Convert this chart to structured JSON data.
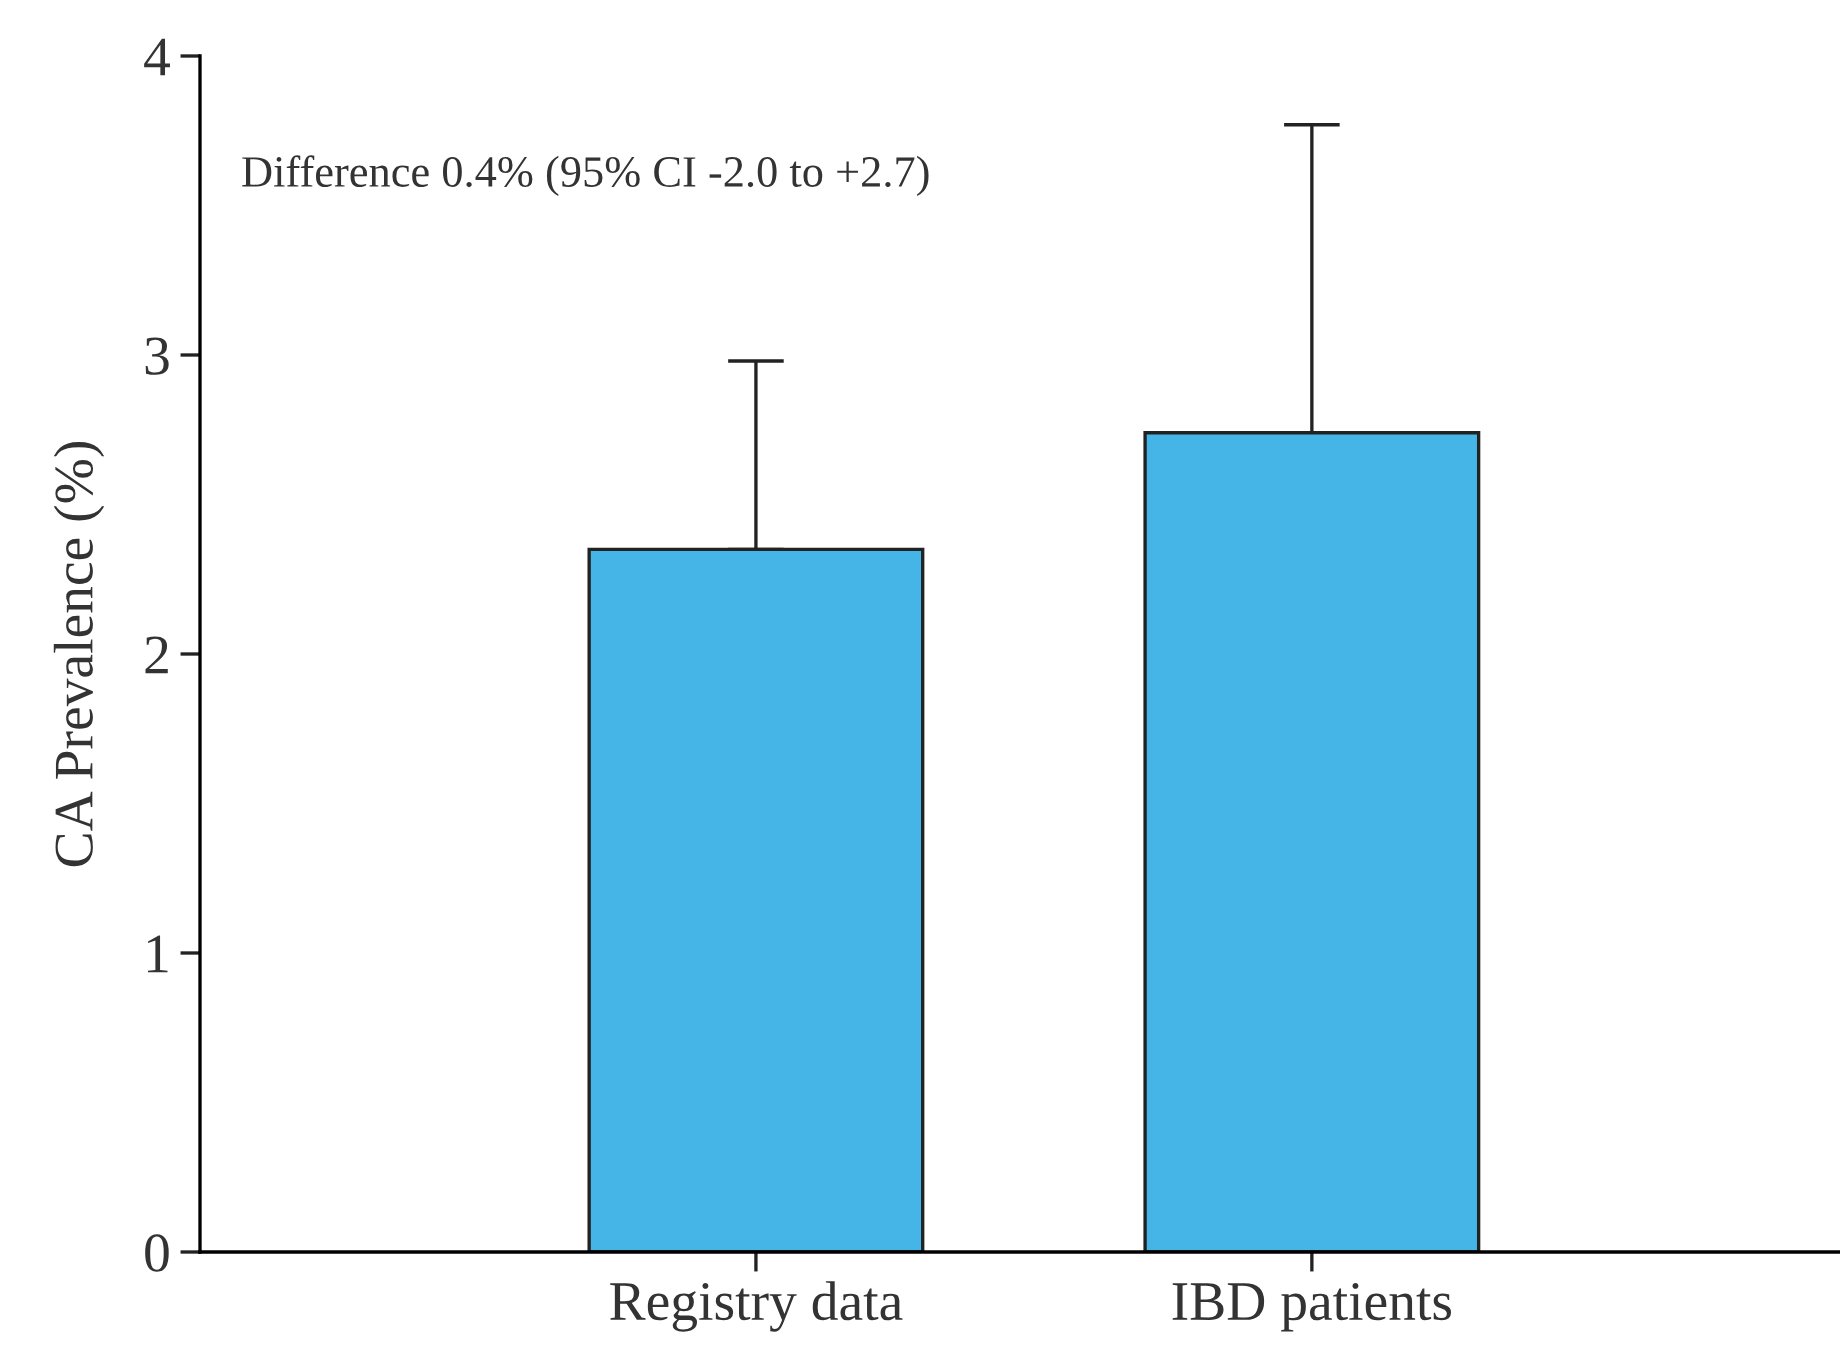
{
  "chart_data": {
    "type": "bar",
    "ylabel": "CA Prevalence (%)",
    "categories": [
      "Registry data",
      "IBD patients"
    ],
    "values": [
      2.35,
      2.74
    ],
    "errors": [
      [
        2.35,
        2.98
      ],
      [
        2.74,
        3.77
      ]
    ],
    "color": "#45b5e8",
    "ylim": [
      0,
      4
    ],
    "yticks": [
      0,
      1,
      2,
      3,
      4
    ],
    "annotations": [
      "Difference 0.4% (95% CI -2.0 to +2.7)"
    ],
    "grid": false
  }
}
